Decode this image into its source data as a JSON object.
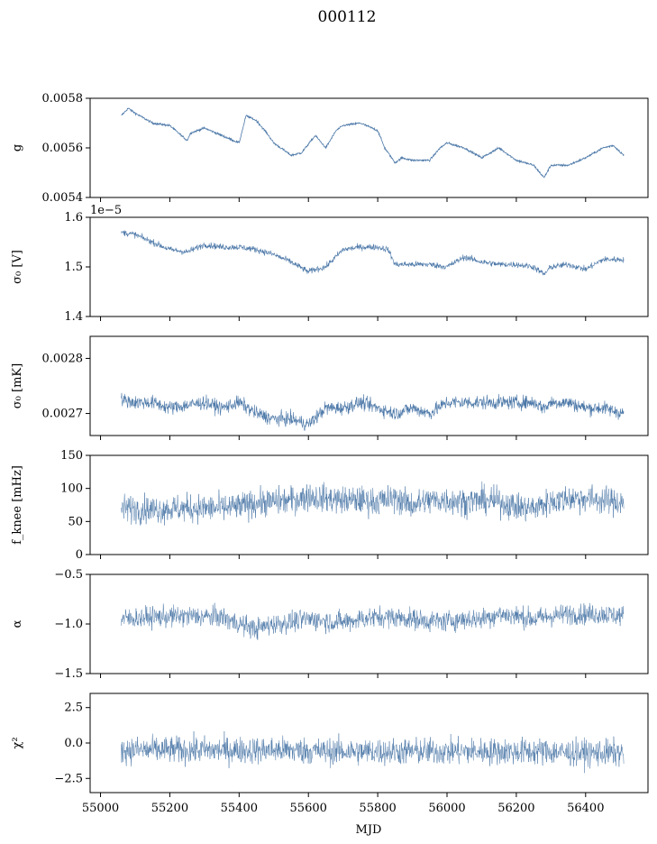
{
  "figure": {
    "title": "000112",
    "xlabel": "MJD"
  },
  "chart_data": [
    {
      "type": "line",
      "ylabel": "g",
      "ylim": [
        0.0054,
        0.0058
      ],
      "yticks": [
        0.0054,
        0.0056,
        0.0058
      ],
      "ytick_labels": [
        "0.0054",
        "0.0056",
        "0.0058"
      ],
      "xlim": [
        54970,
        56580
      ],
      "show_xticklabels": false,
      "noise": 4e-06,
      "stroke_width": 0.8,
      "x": [
        55060,
        55080,
        55100,
        55150,
        55200,
        55250,
        55260,
        55300,
        55350,
        55400,
        55420,
        55450,
        55480,
        55500,
        55550,
        55580,
        55620,
        55650,
        55680,
        55700,
        55750,
        55800,
        55820,
        55850,
        55870,
        55900,
        55950,
        55980,
        56000,
        56050,
        56100,
        56150,
        56200,
        56250,
        56280,
        56300,
        56350,
        56400,
        56450,
        56480,
        56510
      ],
      "y": [
        0.00573,
        0.00576,
        0.00574,
        0.0057,
        0.00569,
        0.00563,
        0.00566,
        0.00568,
        0.00565,
        0.00562,
        0.00573,
        0.00571,
        0.00566,
        0.00562,
        0.00557,
        0.00558,
        0.00565,
        0.0056,
        0.00567,
        0.00569,
        0.0057,
        0.00567,
        0.0056,
        0.00554,
        0.00556,
        0.00555,
        0.00555,
        0.0056,
        0.00562,
        0.0056,
        0.00556,
        0.0056,
        0.00555,
        0.00553,
        0.00548,
        0.00553,
        0.00553,
        0.00556,
        0.0056,
        0.00561,
        0.00557
      ]
    },
    {
      "type": "line",
      "ylabel": "σ₀ [V]",
      "offset_text": "1e−5",
      "ylim": [
        1.4,
        1.6
      ],
      "yticks": [
        1.4,
        1.5,
        1.6
      ],
      "ytick_labels": [
        "1.4",
        "1.5",
        "1.6"
      ],
      "xlim": [
        54970,
        56580
      ],
      "show_xticklabels": false,
      "noise": 0.006,
      "stroke_width": 0.6,
      "x": [
        55060,
        55100,
        55150,
        55200,
        55250,
        55300,
        55350,
        55400,
        55450,
        55500,
        55550,
        55600,
        55620,
        55650,
        55700,
        55750,
        55800,
        55830,
        55850,
        55900,
        55950,
        56000,
        56050,
        56100,
        56150,
        56200,
        56250,
        56280,
        56300,
        56350,
        56400,
        56450,
        56510
      ],
      "y": [
        1.57,
        1.565,
        1.55,
        1.535,
        1.53,
        1.545,
        1.54,
        1.54,
        1.535,
        1.525,
        1.51,
        1.49,
        1.495,
        1.5,
        1.535,
        1.54,
        1.54,
        1.535,
        1.505,
        1.505,
        1.505,
        1.5,
        1.52,
        1.51,
        1.505,
        1.505,
        1.5,
        1.485,
        1.5,
        1.505,
        1.495,
        1.515,
        1.515
      ]
    },
    {
      "type": "line",
      "ylabel": "σ₀ [mK]",
      "ylim": [
        0.00266,
        0.00284
      ],
      "yticks": [
        0.0027,
        0.0028
      ],
      "ytick_labels": [
        "0.0027",
        "0.0028"
      ],
      "xlim": [
        54970,
        56580
      ],
      "show_xticklabels": false,
      "noise": 1.2e-05,
      "stroke_width": 0.6,
      "x": [
        55060,
        55100,
        55150,
        55200,
        55250,
        55300,
        55350,
        55400,
        55450,
        55500,
        55550,
        55600,
        55650,
        55700,
        55750,
        55800,
        55850,
        55900,
        55950,
        56000,
        56050,
        56100,
        56150,
        56200,
        56250,
        56280,
        56300,
        56350,
        56400,
        56450,
        56510
      ],
      "y": [
        0.002725,
        0.00272,
        0.00272,
        0.00271,
        0.002715,
        0.00272,
        0.00271,
        0.00272,
        0.0027,
        0.00269,
        0.00269,
        0.00268,
        0.00271,
        0.00271,
        0.00272,
        0.00271,
        0.0027,
        0.00271,
        0.0027,
        0.00272,
        0.00272,
        0.00272,
        0.00272,
        0.00272,
        0.00272,
        0.00271,
        0.00272,
        0.00272,
        0.00271,
        0.00271,
        0.0027
      ]
    },
    {
      "type": "line",
      "ylabel": "f_knee [mHz]",
      "ylim": [
        0,
        150
      ],
      "yticks": [
        0,
        50,
        100,
        150
      ],
      "ytick_labels": [
        "0",
        "50",
        "100",
        "150"
      ],
      "xlim": [
        54970,
        56580
      ],
      "show_xticklabels": false,
      "noise": 20,
      "stroke_width": 0.5,
      "x": [
        55060,
        55150,
        55250,
        55350,
        55400,
        55450,
        55500,
        55550,
        55600,
        55650,
        55700,
        55750,
        55800,
        55850,
        55900,
        55950,
        56000,
        56050,
        56100,
        56150,
        56200,
        56250,
        56300,
        56350,
        56400,
        56450,
        56510
      ],
      "y": [
        70,
        68,
        70,
        70,
        72,
        78,
        80,
        82,
        88,
        85,
        82,
        82,
        80,
        85,
        75,
        82,
        82,
        80,
        82,
        80,
        72,
        70,
        80,
        85,
        85,
        82,
        78
      ]
    },
    {
      "type": "line",
      "ylabel": "α",
      "ylim": [
        -1.5,
        -0.5
      ],
      "yticks": [
        -1.5,
        -1.0,
        -0.5
      ],
      "ytick_labels": [
        "−1.5",
        "−1.0",
        "−0.5"
      ],
      "xlim": [
        54970,
        56580
      ],
      "show_xticklabels": false,
      "noise": 0.1,
      "stroke_width": 0.5,
      "x": [
        55060,
        55150,
        55250,
        55350,
        55400,
        55450,
        55500,
        55550,
        55600,
        55650,
        55700,
        55750,
        55800,
        55850,
        55900,
        55950,
        56000,
        56050,
        56100,
        56150,
        56200,
        56250,
        56300,
        56350,
        56400,
        56450,
        56510
      ],
      "y": [
        -0.95,
        -0.93,
        -0.92,
        -0.93,
        -1.0,
        -1.05,
        -1.0,
        -0.98,
        -0.95,
        -0.97,
        -0.98,
        -0.95,
        -0.93,
        -0.93,
        -0.95,
        -0.97,
        -0.97,
        -0.95,
        -0.95,
        -0.9,
        -0.92,
        -0.95,
        -0.92,
        -0.9,
        -0.9,
        -0.9,
        -0.92
      ]
    },
    {
      "type": "line",
      "ylabel": "χ²",
      "ylim": [
        -3.5,
        3.5
      ],
      "yticks": [
        -2.5,
        0.0,
        2.5
      ],
      "ytick_labels": [
        "−2.5",
        "0.0",
        "2.5"
      ],
      "xlim": [
        54970,
        56580
      ],
      "show_xticklabels": true,
      "xticks": [
        55000,
        55200,
        55400,
        55600,
        55800,
        56000,
        56200,
        56400
      ],
      "xtick_labels": [
        "55000",
        "55200",
        "55400",
        "55600",
        "55800",
        "56000",
        "56200",
        "56400"
      ],
      "noise": 0.9,
      "stroke_width": 0.5,
      "x": [
        55060,
        55150,
        55250,
        55350,
        55450,
        55550,
        55650,
        55750,
        55850,
        55950,
        56050,
        56150,
        56250,
        56300,
        56350,
        56450,
        56510
      ],
      "y": [
        -0.5,
        -0.5,
        -0.5,
        -0.5,
        -0.5,
        -0.5,
        -0.6,
        -0.6,
        -0.6,
        -0.6,
        -0.6,
        -0.6,
        -0.6,
        -0.6,
        -0.7,
        -0.7,
        -0.7
      ]
    }
  ]
}
